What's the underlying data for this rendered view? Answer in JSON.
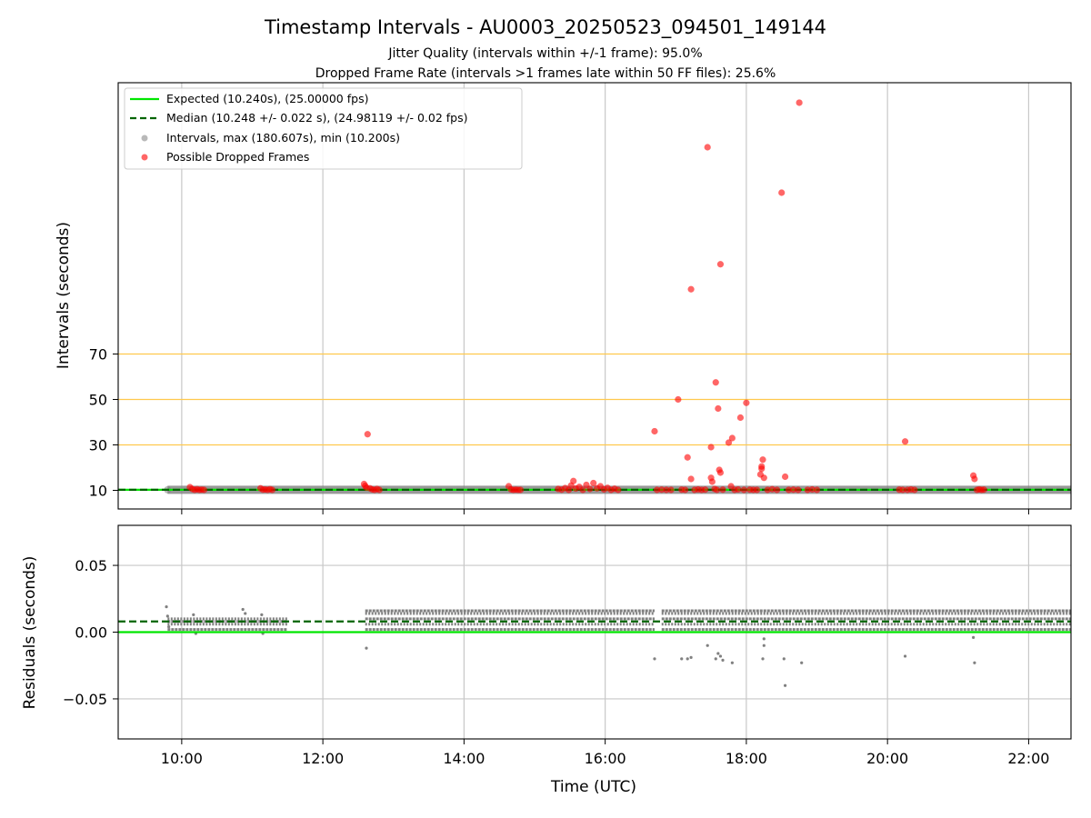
{
  "chart_data": [
    {
      "type": "scatter",
      "title": "Timestamp Intervals - AU0003_20250523_094501_149144",
      "subtitles": [
        "Jitter Quality (intervals within +/-1 frame): 95.0%",
        "Dropped Frame Rate (intervals >1 frames late within 50 FF files): 25.6%"
      ],
      "xlabel": "",
      "ylabel": "Intervals (seconds)",
      "xlim": [
        "09:06",
        "22:36"
      ],
      "ylim": [
        1.5,
        190
      ],
      "x_tick_labels": [
        "10:00",
        "12:00",
        "14:00",
        "16:00",
        "18:00",
        "20:00",
        "22:00"
      ],
      "y_tick_labels": [
        "10",
        "30",
        "50",
        "70"
      ],
      "y_ticks": [
        10,
        30,
        50,
        70
      ],
      "threshold_lines": [
        30,
        50,
        70
      ],
      "threshold_color": "#ffc94d",
      "grid": "vertical",
      "legend_position": "top-left",
      "legend": [
        "Expected (10.240s), (25.00000 fps)",
        "Median (10.248 +/- 0.022 s), (24.98119 +/- 0.02 fps)",
        "Intervals, max (180.607s), min (10.200s)",
        "Possible Dropped Frames"
      ],
      "expected_interval": 10.24,
      "median_interval": 10.248,
      "colors": {
        "expected": "#00e600",
        "median": "#006400",
        "intervals": "#808080",
        "dropped": "#ff0000"
      },
      "series": [
        {
          "name": "Intervals, max (180.607s), min (10.200s)",
          "x_range": [
            "09:48",
            "22:36"
          ],
          "approx_value": 10.24
        },
        {
          "name": "Possible Dropped Frames",
          "points": [
            {
              "x": "10:07",
              "y": 11.4
            },
            {
              "x": "10:09",
              "y": 10.6
            },
            {
              "x": "10:11",
              "y": 10.2
            },
            {
              "x": "10:13",
              "y": 10.5
            },
            {
              "x": "10:15",
              "y": 10.2
            },
            {
              "x": "10:17",
              "y": 10.3
            },
            {
              "x": "10:19",
              "y": 10.2
            },
            {
              "x": "11:07",
              "y": 10.9
            },
            {
              "x": "11:09",
              "y": 10.3
            },
            {
              "x": "11:11",
              "y": 10.4
            },
            {
              "x": "11:13",
              "y": 10.2
            },
            {
              "x": "11:15",
              "y": 10.5
            },
            {
              "x": "11:17",
              "y": 10.2
            },
            {
              "x": "12:35",
              "y": 12.8
            },
            {
              "x": "12:36",
              "y": 12.0
            },
            {
              "x": "12:37",
              "y": 11.2
            },
            {
              "x": "12:38",
              "y": 34.7
            },
            {
              "x": "12:40",
              "y": 10.9
            },
            {
              "x": "12:42",
              "y": 10.4
            },
            {
              "x": "12:44",
              "y": 10.2
            },
            {
              "x": "12:46",
              "y": 10.6
            },
            {
              "x": "12:48",
              "y": 10.2
            },
            {
              "x": "14:38",
              "y": 11.8
            },
            {
              "x": "14:40",
              "y": 10.4
            },
            {
              "x": "14:42",
              "y": 10.2
            },
            {
              "x": "14:44",
              "y": 10.3
            },
            {
              "x": "14:46",
              "y": 10.2
            },
            {
              "x": "14:48",
              "y": 10.2
            },
            {
              "x": "15:20",
              "y": 10.6
            },
            {
              "x": "15:23",
              "y": 10.3
            },
            {
              "x": "15:26",
              "y": 11.0
            },
            {
              "x": "15:29",
              "y": 10.2
            },
            {
              "x": "15:31",
              "y": 12.1
            },
            {
              "x": "15:33",
              "y": 14.1
            },
            {
              "x": "15:35",
              "y": 10.8
            },
            {
              "x": "15:38",
              "y": 11.5
            },
            {
              "x": "15:41",
              "y": 10.2
            },
            {
              "x": "15:44",
              "y": 12.4
            },
            {
              "x": "15:47",
              "y": 10.6
            },
            {
              "x": "15:50",
              "y": 13.2
            },
            {
              "x": "15:53",
              "y": 10.9
            },
            {
              "x": "15:56",
              "y": 11.8
            },
            {
              "x": "15:59",
              "y": 10.4
            },
            {
              "x": "16:02",
              "y": 11.1
            },
            {
              "x": "16:05",
              "y": 10.2
            },
            {
              "x": "16:08",
              "y": 10.7
            },
            {
              "x": "16:11",
              "y": 10.2
            },
            {
              "x": "16:42",
              "y": 36.0
            },
            {
              "x": "16:44",
              "y": 10.2
            },
            {
              "x": "16:48",
              "y": 10.3
            },
            {
              "x": "16:52",
              "y": 10.2
            },
            {
              "x": "16:56",
              "y": 10.2
            },
            {
              "x": "17:02",
              "y": 50.0
            },
            {
              "x": "17:05",
              "y": 10.3
            },
            {
              "x": "17:08",
              "y": 10.2
            },
            {
              "x": "17:10",
              "y": 24.5
            },
            {
              "x": "17:13",
              "y": 15.0
            },
            {
              "x": "17:13",
              "y": 98.5
            },
            {
              "x": "17:16",
              "y": 10.2
            },
            {
              "x": "17:19",
              "y": 10.4
            },
            {
              "x": "17:22",
              "y": 10.2
            },
            {
              "x": "17:25",
              "y": 10.3
            },
            {
              "x": "17:27",
              "y": 161.0
            },
            {
              "x": "17:30",
              "y": 29.0
            },
            {
              "x": "17:30",
              "y": 15.5
            },
            {
              "x": "17:31",
              "y": 13.8
            },
            {
              "x": "17:33",
              "y": 10.6
            },
            {
              "x": "17:34",
              "y": 57.5
            },
            {
              "x": "17:35",
              "y": 10.2
            },
            {
              "x": "17:36",
              "y": 46.0
            },
            {
              "x": "17:37",
              "y": 19.0
            },
            {
              "x": "17:38",
              "y": 17.8
            },
            {
              "x": "17:38",
              "y": 109.5
            },
            {
              "x": "17:40",
              "y": 10.3
            },
            {
              "x": "17:45",
              "y": 31.0
            },
            {
              "x": "17:47",
              "y": 11.8
            },
            {
              "x": "17:48",
              "y": 33.0
            },
            {
              "x": "17:50",
              "y": 10.2
            },
            {
              "x": "17:53",
              "y": 10.4
            },
            {
              "x": "17:55",
              "y": 42.0
            },
            {
              "x": "17:58",
              "y": 10.2
            },
            {
              "x": "18:00",
              "y": 48.5
            },
            {
              "x": "18:03",
              "y": 10.3
            },
            {
              "x": "18:06",
              "y": 10.2
            },
            {
              "x": "18:09",
              "y": 10.2
            },
            {
              "x": "18:12",
              "y": 17.0
            },
            {
              "x": "18:13",
              "y": 20.5
            },
            {
              "x": "18:13",
              "y": 19.5
            },
            {
              "x": "18:14",
              "y": 23.5
            },
            {
              "x": "18:15",
              "y": 15.5
            },
            {
              "x": "18:18",
              "y": 10.2
            },
            {
              "x": "18:22",
              "y": 10.5
            },
            {
              "x": "18:26",
              "y": 10.2
            },
            {
              "x": "18:30",
              "y": 141.0
            },
            {
              "x": "18:33",
              "y": 16.0
            },
            {
              "x": "18:36",
              "y": 10.2
            },
            {
              "x": "18:40",
              "y": 10.3
            },
            {
              "x": "18:44",
              "y": 10.2
            },
            {
              "x": "18:45",
              "y": 180.607
            },
            {
              "x": "18:52",
              "y": 10.2
            },
            {
              "x": "18:56",
              "y": 10.4
            },
            {
              "x": "19:00",
              "y": 10.2
            },
            {
              "x": "20:10",
              "y": 10.3
            },
            {
              "x": "20:13",
              "y": 10.2
            },
            {
              "x": "20:15",
              "y": 31.5
            },
            {
              "x": "20:17",
              "y": 10.2
            },
            {
              "x": "20:20",
              "y": 10.4
            },
            {
              "x": "20:23",
              "y": 10.2
            },
            {
              "x": "21:13",
              "y": 16.5
            },
            {
              "x": "21:14",
              "y": 15.0
            },
            {
              "x": "21:16",
              "y": 10.2
            },
            {
              "x": "21:18",
              "y": 10.4
            },
            {
              "x": "21:20",
              "y": 10.2
            },
            {
              "x": "21:22",
              "y": 10.3
            }
          ]
        }
      ]
    },
    {
      "type": "scatter",
      "title": "",
      "xlabel": "Time (UTC)",
      "ylabel": "Residuals (seconds)",
      "xlim": [
        "09:06",
        "22:36"
      ],
      "ylim": [
        -0.08,
        0.08
      ],
      "x_tick_labels": [
        "10:00",
        "12:00",
        "14:00",
        "16:00",
        "18:00",
        "20:00",
        "22:00"
      ],
      "y_tick_labels": [
        "−0.05",
        "0.00",
        "0.05"
      ],
      "y_ticks": [
        -0.05,
        0.0,
        0.05
      ],
      "grid": "both",
      "expected_residual": 0.0,
      "median_residual": 0.008,
      "colors": {
        "expected": "#00e600",
        "median": "#006400",
        "points": "#808080"
      },
      "residual_bands": [
        {
          "start": "09:48",
          "end": "11:30",
          "levels": [
            0.002,
            0.006,
            0.008,
            0.01
          ]
        },
        {
          "start": "12:36",
          "end": "16:42",
          "levels": [
            0.002,
            0.006,
            0.01,
            0.014,
            0.016
          ]
        },
        {
          "start": "16:48",
          "end": "22:36",
          "levels": [
            0.002,
            0.006,
            0.01,
            0.014,
            0.016
          ]
        }
      ],
      "outliers": [
        {
          "x": "09:47",
          "y": 0.019
        },
        {
          "x": "09:48",
          "y": 0.012
        },
        {
          "x": "09:49",
          "y": 0.004
        },
        {
          "x": "10:12",
          "y": -0.001
        },
        {
          "x": "10:10",
          "y": 0.013
        },
        {
          "x": "10:52",
          "y": 0.017
        },
        {
          "x": "10:54",
          "y": 0.014
        },
        {
          "x": "11:08",
          "y": 0.013
        },
        {
          "x": "11:09",
          "y": -0.001
        },
        {
          "x": "12:37",
          "y": -0.012
        },
        {
          "x": "16:42",
          "y": -0.02
        },
        {
          "x": "17:05",
          "y": -0.02
        },
        {
          "x": "17:10",
          "y": -0.02
        },
        {
          "x": "17:13",
          "y": -0.019
        },
        {
          "x": "17:27",
          "y": -0.01
        },
        {
          "x": "17:34",
          "y": -0.02
        },
        {
          "x": "17:36",
          "y": -0.016
        },
        {
          "x": "17:38",
          "y": -0.018
        },
        {
          "x": "17:40",
          "y": -0.021
        },
        {
          "x": "17:48",
          "y": -0.023
        },
        {
          "x": "18:14",
          "y": -0.02
        },
        {
          "x": "18:15",
          "y": -0.005
        },
        {
          "x": "18:15",
          "y": -0.01
        },
        {
          "x": "18:32",
          "y": -0.02
        },
        {
          "x": "18:33",
          "y": -0.04
        },
        {
          "x": "18:47",
          "y": -0.023
        },
        {
          "x": "20:15",
          "y": -0.018
        },
        {
          "x": "21:14",
          "y": -0.023
        },
        {
          "x": "21:13",
          "y": -0.004
        }
      ]
    }
  ]
}
